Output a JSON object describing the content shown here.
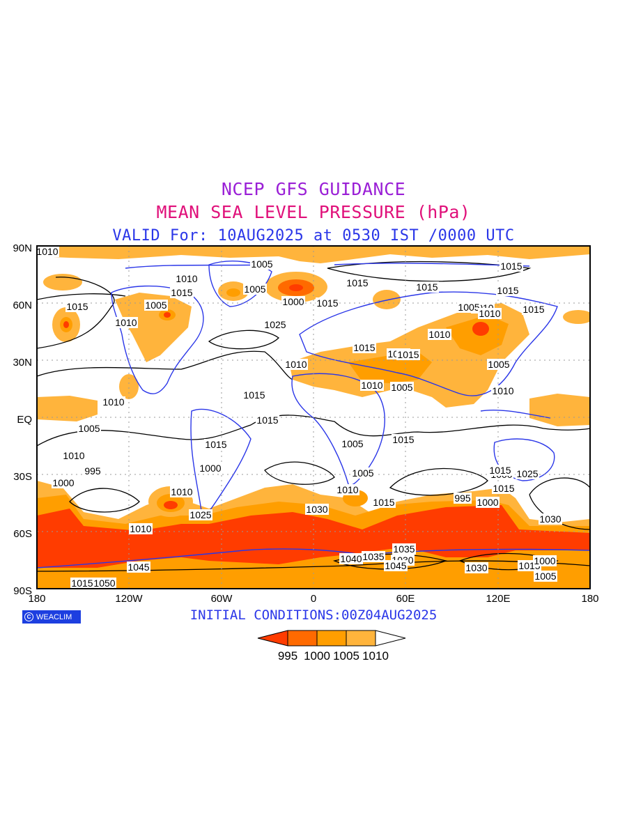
{
  "title": {
    "line1": "NCEP GFS GUIDANCE",
    "line2": "MEAN SEA LEVEL PRESSURE (hPa)",
    "line3": "VALID For: 10AUG2025 at 0530 IST /0000 UTC",
    "colors": {
      "line1": "#9a1fd6",
      "line2": "#e0107a",
      "line3": "#2a36e8"
    }
  },
  "axes": {
    "y_ticks": [
      "90N",
      "60N",
      "30N",
      "EQ",
      "30S",
      "60S",
      "90S"
    ],
    "x_ticks": [
      "180",
      "120W",
      "60W",
      "0",
      "60E",
      "120E",
      "180"
    ]
  },
  "colors": {
    "lt995": "#ff3c00",
    "c995_1000": "#ff6a00",
    "c1000_1005": "#ff9e00",
    "c1005_1010": "#ffb43c",
    "gt1010": "#ffffff",
    "coastline": "#2a36e8",
    "contour": "#000000"
  },
  "contour_labels": [
    "1010",
    "1005",
    "1010",
    "1015",
    "1005",
    "1000",
    "1015",
    "1015",
    "1005",
    "1015",
    "1010",
    "1025",
    "1015",
    "1010",
    "1015",
    "1005",
    "1010",
    "1015",
    "1015",
    "1010",
    "1005",
    "1015",
    "1010",
    "1010",
    "1015",
    "1005",
    "1010",
    "1010",
    "1015",
    "1010",
    "1005",
    "1015",
    "1015",
    "1015",
    "1005",
    "1010",
    "995",
    "1000",
    "1000",
    "1005",
    "1010",
    "1010",
    "1000",
    "1025",
    "1030",
    "1015",
    "1025",
    "1015",
    "995",
    "1000",
    "1010",
    "1015",
    "1030",
    "1045",
    "1040",
    "1035",
    "1030",
    "1045",
    "1035",
    "1030",
    "1015",
    "1000",
    "1005",
    "1015",
    "1050"
  ],
  "logo": {
    "text": "WEACLIM",
    "icon": "copyright-circle-icon"
  },
  "initial_conditions": "INITIAL CONDITIONS:00Z04AUG2025",
  "legend": {
    "labels": [
      "995",
      "1000",
      "1005",
      "1010"
    ],
    "colors": [
      "#ff3c00",
      "#ff6a00",
      "#ff9e00",
      "#ffb43c",
      "#ffffff"
    ]
  }
}
